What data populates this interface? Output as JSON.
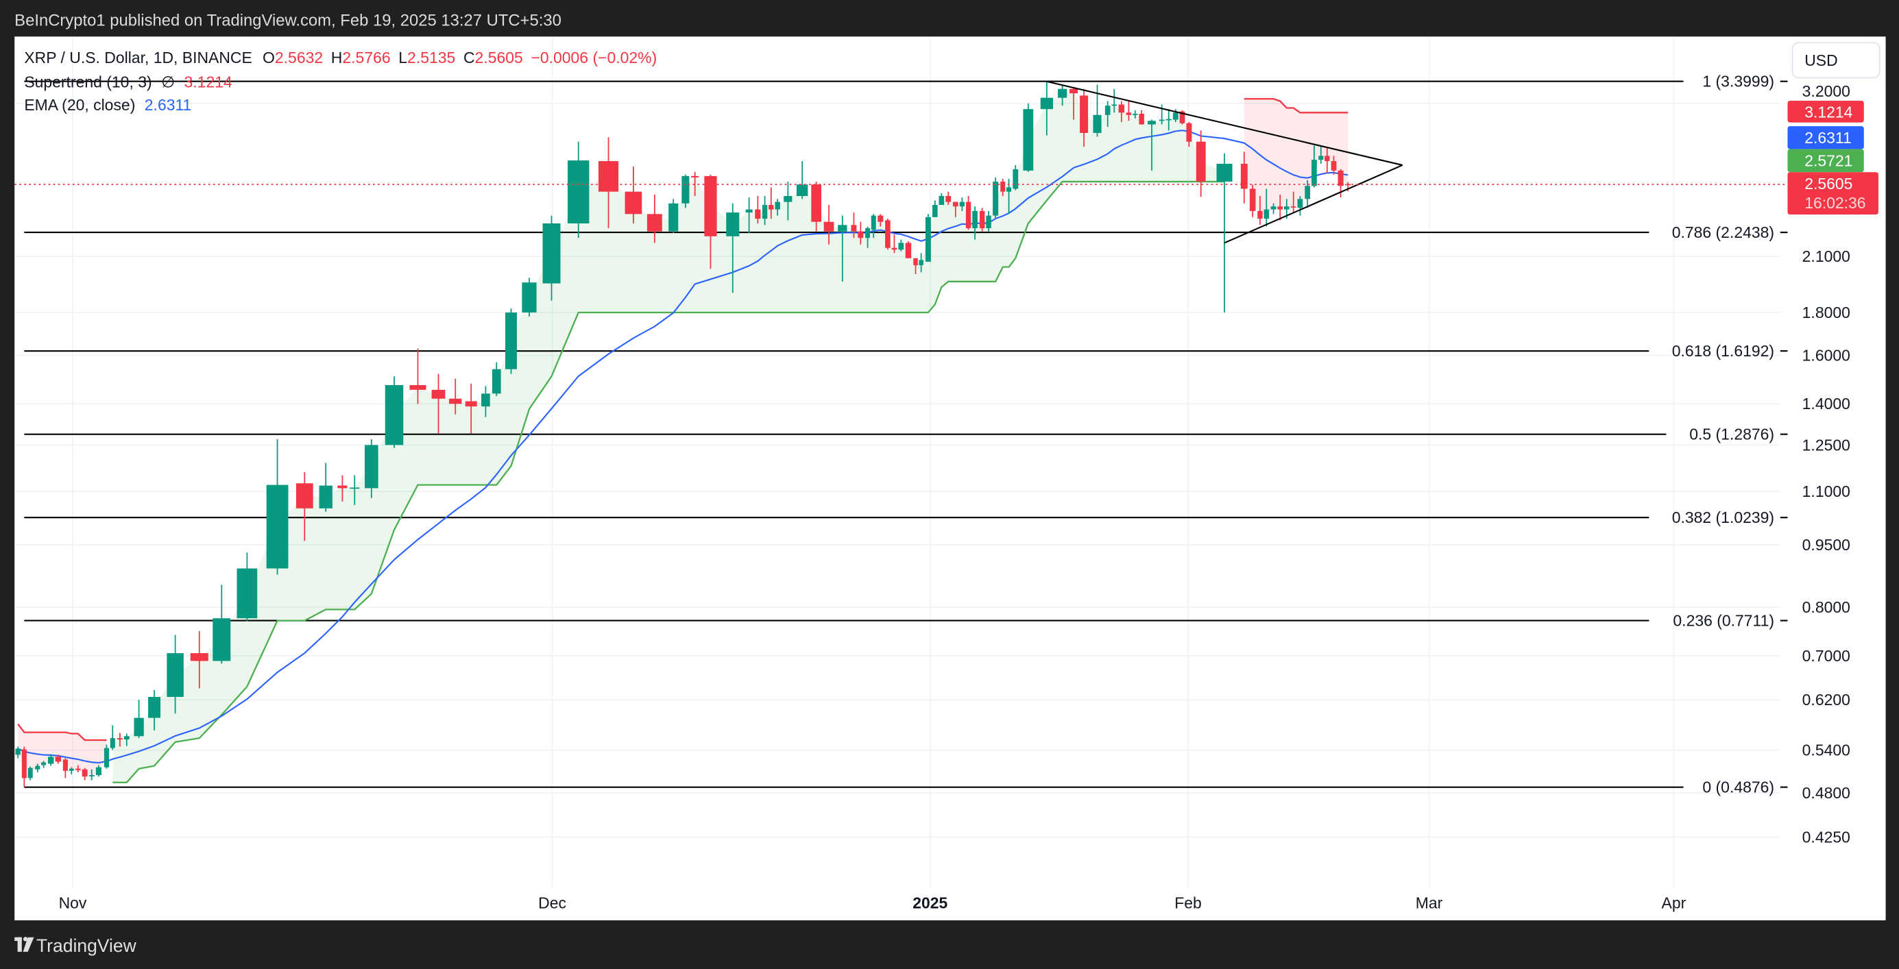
{
  "header": {
    "published": "BeInCrypto1 published on TradingView.com, Feb 19, 2025 13:27 UTC+5:30"
  },
  "legend": {
    "symbol": "XRP / U.S. Dollar, 1D, BINANCE",
    "o_label": "O",
    "o": "2.5632",
    "h_label": "H",
    "h": "2.5766",
    "l_label": "L",
    "l": "2.5135",
    "c_label": "C",
    "c": "2.5605",
    "change": "−0.0006 (−0.02%)",
    "supertrend_label": "Supertrend (10, 3)",
    "supertrend_icon": "hidden-slashed-circle-icon",
    "supertrend_symbol": "∅",
    "supertrend_value": "3.1214",
    "ema_label": "EMA (20, close)",
    "ema_value": "2.6311"
  },
  "price_axis": {
    "currency": "USD",
    "ticks": [
      "3.2000",
      "2.1000",
      "1.8000",
      "1.6000",
      "1.4000",
      "1.2500",
      "1.1000",
      "0.9500",
      "0.8000",
      "0.7000",
      "0.6200",
      "0.5400",
      "0.4800",
      "0.4250"
    ],
    "badges": [
      {
        "name": "supertrend",
        "value": "3.1214",
        "color": "#f23645"
      },
      {
        "name": "ema",
        "value": "2.6311",
        "color": "#2962ff"
      },
      {
        "name": "supertrend-up",
        "value": "2.5721",
        "color": "#4caf50"
      },
      {
        "name": "last-price",
        "value": "2.5605",
        "countdown": "16:02:36",
        "color": "#f23645"
      }
    ]
  },
  "time_axis": {
    "labels": [
      "Nov",
      "Dec",
      "2025",
      "Feb",
      "Mar",
      "Apr"
    ]
  },
  "footer": {
    "brand": "TradingView",
    "logo_icon": "tradingview-logo-icon"
  },
  "colors": {
    "up": "#089981",
    "down": "#f23645",
    "ema": "#2962ff",
    "supertrend_up": "#4caf50",
    "supertrend_down": "#f23645",
    "background": "#ffffff",
    "frame": "#202020"
  },
  "chart_data": {
    "type": "candlestick",
    "scale": "log",
    "ylim": [
      0.4,
      3.45
    ],
    "grid": true,
    "last_price": 2.5605,
    "candles_ohlc": [
      [
        0.533,
        0.545,
        0.528,
        0.542
      ],
      [
        0.541,
        0.545,
        0.488,
        0.5
      ],
      [
        0.5,
        0.516,
        0.497,
        0.514
      ],
      [
        0.512,
        0.52,
        0.508,
        0.517
      ],
      [
        0.518,
        0.524,
        0.514,
        0.522
      ],
      [
        0.52,
        0.534,
        0.517,
        0.53
      ],
      [
        0.53,
        0.533,
        0.52,
        0.523
      ],
      [
        0.526,
        0.528,
        0.5,
        0.51
      ],
      [
        0.51,
        0.515,
        0.505,
        0.513
      ],
      [
        0.513,
        0.518,
        0.508,
        0.511
      ],
      [
        0.512,
        0.514,
        0.497,
        0.502
      ],
      [
        0.503,
        0.512,
        0.497,
        0.504
      ],
      [
        0.504,
        0.518,
        0.502,
        0.515
      ],
      [
        0.515,
        0.548,
        0.513,
        0.543
      ],
      [
        0.543,
        0.578,
        0.54,
        0.558
      ],
      [
        0.558,
        0.566,
        0.545,
        0.556
      ],
      [
        0.556,
        0.565,
        0.546,
        0.561
      ],
      [
        0.561,
        0.62,
        0.558,
        0.59
      ],
      [
        0.59,
        0.637,
        0.57,
        0.625
      ],
      [
        0.625,
        0.741,
        0.597,
        0.705
      ],
      [
        0.705,
        0.749,
        0.64,
        0.69
      ],
      [
        0.69,
        0.851,
        0.685,
        0.776
      ],
      [
        0.776,
        0.93,
        0.77,
        0.89
      ],
      [
        0.89,
        1.27,
        0.875,
        1.12
      ],
      [
        1.125,
        1.16,
        0.96,
        1.05
      ],
      [
        1.05,
        1.19,
        1.04,
        1.118
      ],
      [
        1.118,
        1.15,
        1.07,
        1.11
      ],
      [
        1.11,
        1.15,
        1.06,
        1.112
      ],
      [
        1.11,
        1.27,
        1.08,
        1.25
      ],
      [
        1.25,
        1.51,
        1.24,
        1.474
      ],
      [
        1.474,
        1.63,
        1.4,
        1.455
      ],
      [
        1.455,
        1.52,
        1.29,
        1.42
      ],
      [
        1.42,
        1.5,
        1.36,
        1.4
      ],
      [
        1.41,
        1.48,
        1.29,
        1.39
      ],
      [
        1.39,
        1.47,
        1.35,
        1.44
      ],
      [
        1.44,
        1.57,
        1.43,
        1.54
      ],
      [
        1.54,
        1.82,
        1.52,
        1.8
      ],
      [
        1.8,
        1.98,
        1.78,
        1.955
      ],
      [
        1.95,
        2.35,
        1.86,
        2.3
      ],
      [
        2.3,
        2.88,
        2.21,
        2.735
      ],
      [
        2.73,
        2.915,
        2.27,
        2.51
      ],
      [
        2.51,
        2.69,
        2.3,
        2.36
      ],
      [
        2.36,
        2.49,
        2.18,
        2.25
      ],
      [
        2.25,
        2.46,
        2.24,
        2.43
      ],
      [
        2.43,
        2.63,
        2.4,
        2.62
      ],
      [
        2.62,
        2.65,
        2.48,
        2.61
      ],
      [
        2.62,
        2.63,
        2.03,
        2.22
      ],
      [
        2.22,
        2.43,
        1.9,
        2.37
      ],
      [
        2.37,
        2.47,
        2.24,
        2.39
      ],
      [
        2.39,
        2.48,
        2.3,
        2.33
      ],
      [
        2.33,
        2.48,
        2.29,
        2.42
      ],
      [
        2.42,
        2.54,
        2.33,
        2.39
      ],
      [
        2.39,
        2.46,
        2.35,
        2.44
      ],
      [
        2.44,
        2.58,
        2.32,
        2.48
      ],
      [
        2.48,
        2.73,
        2.46,
        2.56
      ],
      [
        2.56,
        2.58,
        2.25,
        2.31
      ],
      [
        2.31,
        2.42,
        2.17,
        2.25
      ],
      [
        2.25,
        2.35,
        1.96,
        2.29
      ],
      [
        2.29,
        2.37,
        2.21,
        2.25
      ],
      [
        2.25,
        2.31,
        2.17,
        2.21
      ],
      [
        2.21,
        2.28,
        2.15,
        2.27
      ],
      [
        2.26,
        2.36,
        2.21,
        2.35
      ],
      [
        2.35,
        2.36,
        2.28,
        2.31
      ],
      [
        2.32,
        2.33,
        2.14,
        2.15
      ],
      [
        2.15,
        2.23,
        2.12,
        2.14
      ],
      [
        2.14,
        2.2,
        2.13,
        2.18
      ],
      [
        2.18,
        2.19,
        2.09,
        2.09
      ],
      [
        2.09,
        2.09,
        2.0,
        2.05
      ],
      [
        2.05,
        2.12,
        2.01,
        2.08
      ],
      [
        2.07,
        2.36,
        2.07,
        2.34
      ],
      [
        2.34,
        2.45,
        2.34,
        2.42
      ],
      [
        2.42,
        2.5,
        2.42,
        2.48
      ],
      [
        2.48,
        2.51,
        2.42,
        2.44
      ],
      [
        2.44,
        2.44,
        2.34,
        2.41
      ],
      [
        2.41,
        2.47,
        2.38,
        2.44
      ],
      [
        2.44,
        2.48,
        2.26,
        2.27
      ],
      [
        2.27,
        2.41,
        2.2,
        2.38
      ],
      [
        2.38,
        2.4,
        2.25,
        2.27
      ],
      [
        2.27,
        2.38,
        2.25,
        2.35
      ],
      [
        2.35,
        2.61,
        2.33,
        2.58
      ],
      [
        2.58,
        2.6,
        2.48,
        2.51
      ],
      [
        2.51,
        2.6,
        2.36,
        2.54
      ],
      [
        2.53,
        2.7,
        2.52,
        2.67
      ],
      [
        2.66,
        3.2,
        2.65,
        3.15
      ],
      [
        3.15,
        3.4,
        2.93,
        3.25
      ],
      [
        3.25,
        3.36,
        3.18,
        3.33
      ],
      [
        3.33,
        3.34,
        3.06,
        3.29
      ],
      [
        3.27,
        3.33,
        2.84,
        2.95
      ],
      [
        2.95,
        3.37,
        2.92,
        3.1
      ],
      [
        3.1,
        3.22,
        3.0,
        3.18
      ],
      [
        3.18,
        3.33,
        3.12,
        3.19
      ],
      [
        3.19,
        3.22,
        3.04,
        3.12
      ],
      [
        3.12,
        3.22,
        3.05,
        3.1
      ],
      [
        3.1,
        3.14,
        3.07,
        3.11
      ],
      [
        3.11,
        3.14,
        3.02,
        3.02
      ],
      [
        3.02,
        3.06,
        2.66,
        3.05
      ],
      [
        3.05,
        3.19,
        3.02,
        3.06
      ],
      [
        3.06,
        3.15,
        2.97,
        3.065
      ],
      [
        3.06,
        3.15,
        3.04,
        3.12
      ],
      [
        3.13,
        3.14,
        3.02,
        3.03
      ],
      [
        3.03,
        3.04,
        2.84,
        2.88
      ],
      [
        2.88,
        2.97,
        2.475,
        2.58
      ],
      [
        2.58,
        2.79,
        1.8,
        2.71
      ],
      [
        2.71,
        2.8,
        2.43,
        2.53
      ],
      [
        2.53,
        2.56,
        2.34,
        2.38
      ],
      [
        2.38,
        2.48,
        2.29,
        2.33
      ],
      [
        2.33,
        2.53,
        2.28,
        2.39
      ],
      [
        2.39,
        2.43,
        2.36,
        2.41
      ],
      [
        2.41,
        2.49,
        2.32,
        2.39
      ],
      [
        2.39,
        2.46,
        2.33,
        2.41
      ],
      [
        2.41,
        2.51,
        2.37,
        2.405
      ],
      [
        2.4,
        2.48,
        2.35,
        2.46
      ],
      [
        2.46,
        2.59,
        2.4,
        2.55
      ],
      [
        2.55,
        2.85,
        2.54,
        2.74
      ],
      [
        2.74,
        2.85,
        2.71,
        2.77
      ],
      [
        2.77,
        2.83,
        2.64,
        2.73
      ],
      [
        2.73,
        2.77,
        2.63,
        2.66
      ],
      [
        2.66,
        2.67,
        2.47,
        2.55
      ],
      [
        2.5632,
        2.5766,
        2.5135,
        2.5605
      ]
    ],
    "supertrend": [
      {
        "trend": "down",
        "start": 0,
        "values": [
          0.58,
          0.567,
          0.567,
          0.567,
          0.567,
          0.567,
          0.567,
          0.567,
          0.565,
          0.565,
          0.555,
          0.555,
          0.555,
          0.555
        ]
      },
      {
        "trend": "up",
        "start": 14,
        "values": [
          0.494,
          0.494,
          0.494,
          0.513,
          0.517,
          0.552,
          0.558,
          0.595,
          0.643,
          0.771,
          0.771,
          0.795,
          0.795,
          0.795,
          0.83,
          0.99,
          1.12,
          1.12,
          1.12,
          1.12,
          1.12,
          1.12,
          1.18,
          1.38,
          1.51,
          1.8,
          1.8,
          1.8,
          1.8,
          1.8,
          1.8,
          1.8,
          1.8,
          1.8,
          1.8,
          1.8,
          1.8,
          1.8,
          1.8,
          1.8,
          1.8,
          1.8,
          1.8,
          1.8,
          1.8,
          1.8,
          1.8,
          1.8,
          1.8,
          1.8,
          1.8,
          1.8,
          1.8,
          1.8,
          1.8,
          1.8,
          1.84,
          1.93,
          1.96,
          1.96,
          1.96,
          1.96,
          1.96,
          1.96,
          1.96,
          1.96,
          2.04,
          2.04,
          2.09,
          2.3,
          2.45,
          2.58,
          2.58,
          2.58,
          2.58,
          2.58,
          2.58,
          2.58,
          2.58,
          2.58,
          2.58,
          2.58,
          2.58,
          2.58,
          2.58,
          2.58,
          2.58,
          2.58,
          2.58
        ]
      },
      {
        "trend": "down",
        "start": 103,
        "values": [
          3.24,
          3.24,
          3.24,
          3.24,
          3.24,
          3.22,
          3.16,
          3.16,
          3.12,
          3.12,
          3.12,
          3.12,
          3.12,
          3.12,
          3.12,
          3.12
        ]
      }
    ],
    "ema_period": 20,
    "fib_levels": [
      {
        "level": "1",
        "price": 3.3999,
        "label": "1 (3.3999)"
      },
      {
        "level": "0.786",
        "price": 2.2438,
        "label": "0.786 (2.2438)"
      },
      {
        "level": "0.618",
        "price": 1.6192,
        "label": "0.618 (1.6192)"
      },
      {
        "level": "0.5",
        "price": 1.2876,
        "label": "0.5 (1.2876)"
      },
      {
        "level": "0.382",
        "price": 1.0239,
        "label": "0.382 (1.0239)"
      },
      {
        "level": "0.236",
        "price": 0.7711,
        "label": "0.236 (0.7711)"
      },
      {
        "level": "0",
        "price": 0.4876,
        "label": "0 (0.4876)"
      }
    ],
    "trendlines": [
      {
        "name": "triangle-upper",
        "from_price": 3.3999,
        "to_price": 2.7
      },
      {
        "name": "triangle-lower",
        "from_price": 2.18,
        "to_price": 2.7
      }
    ]
  }
}
